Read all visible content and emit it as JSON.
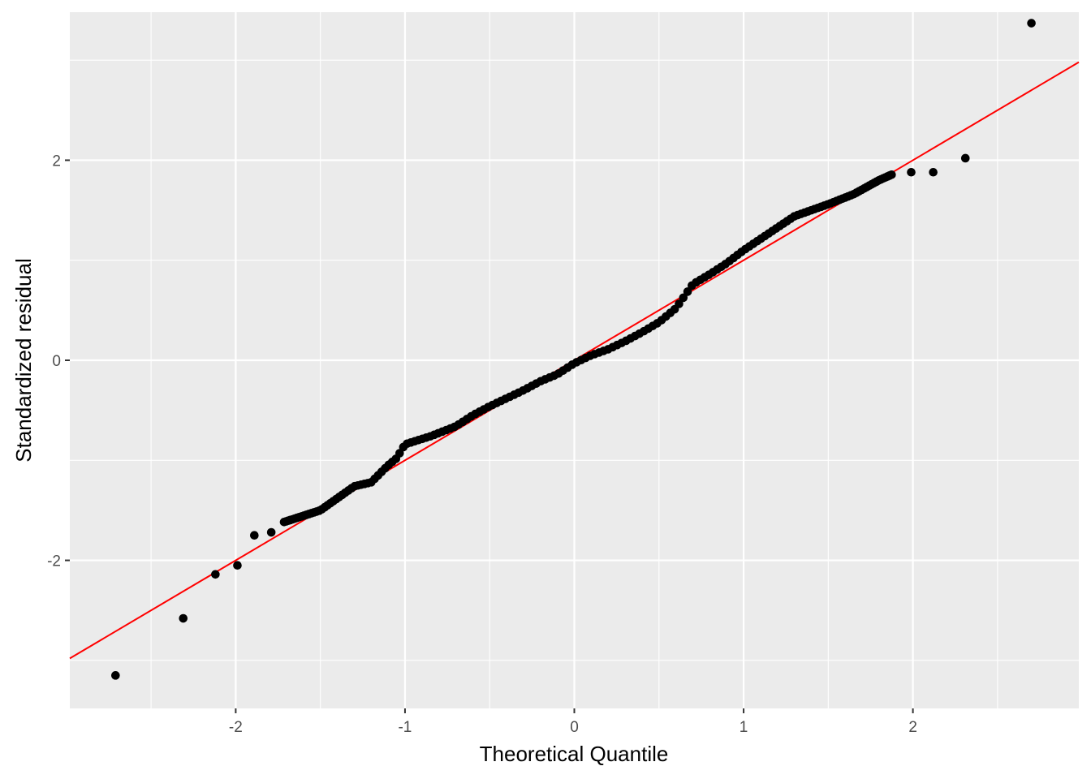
{
  "chart_data": {
    "type": "scatter",
    "subtype": "qq-plot",
    "title": "",
    "xlabel": "Theoretical Quantile",
    "ylabel": "Standardized residual",
    "xlim": [
      -2.98,
      2.98
    ],
    "ylim": [
      -3.48,
      3.48
    ],
    "x_ticks": [
      -2,
      -1,
      0,
      1,
      2
    ],
    "x_tick_labels": [
      "-2",
      "-1",
      "0",
      "1",
      "2"
    ],
    "y_ticks": [
      -2,
      0,
      2
    ],
    "y_tick_labels": [
      "-2",
      "0",
      "2"
    ],
    "grid": true,
    "legend": "none",
    "colors": {
      "panel_background": "#ebebeb",
      "grid": "#ffffff",
      "points": "#000000",
      "reference_line": "#ff0000",
      "tick_text": "#4d4d4d",
      "axis_title": "#000000"
    },
    "reference_line": {
      "slope": 1.0,
      "intercept": 0.0
    },
    "tail_points": [
      {
        "x": -2.71,
        "y": -3.15
      },
      {
        "x": -2.31,
        "y": -2.58
      },
      {
        "x": -2.12,
        "y": -2.14
      },
      {
        "x": -1.99,
        "y": -2.05
      },
      {
        "x": -1.89,
        "y": -1.75
      },
      {
        "x": -1.79,
        "y": -1.72
      },
      {
        "x": 1.99,
        "y": 1.88
      },
      {
        "x": 2.12,
        "y": 1.88
      },
      {
        "x": 2.31,
        "y": 2.02
      },
      {
        "x": 2.7,
        "y": 3.37
      }
    ],
    "body_curve": [
      [
        -1.72,
        -1.62
      ],
      [
        -1.5,
        -1.5
      ],
      [
        -1.3,
        -1.26
      ],
      [
        -1.2,
        -1.22
      ],
      [
        -1.1,
        -1.05
      ],
      [
        -1.05,
        -0.98
      ],
      [
        -1.0,
        -0.84
      ],
      [
        -0.85,
        -0.76
      ],
      [
        -0.7,
        -0.66
      ],
      [
        -0.6,
        -0.55
      ],
      [
        -0.5,
        -0.46
      ],
      [
        -0.4,
        -0.38
      ],
      [
        -0.3,
        -0.3
      ],
      [
        -0.2,
        -0.21
      ],
      [
        -0.1,
        -0.14
      ],
      [
        0.0,
        -0.03
      ],
      [
        0.1,
        0.05
      ],
      [
        0.2,
        0.11
      ],
      [
        0.3,
        0.19
      ],
      [
        0.4,
        0.28
      ],
      [
        0.5,
        0.38
      ],
      [
        0.6,
        0.52
      ],
      [
        0.7,
        0.76
      ],
      [
        0.8,
        0.86
      ],
      [
        0.9,
        0.97
      ],
      [
        1.0,
        1.1
      ],
      [
        1.15,
        1.27
      ],
      [
        1.3,
        1.44
      ],
      [
        1.5,
        1.56
      ],
      [
        1.65,
        1.66
      ],
      [
        1.8,
        1.8
      ],
      [
        1.88,
        1.86
      ]
    ]
  }
}
